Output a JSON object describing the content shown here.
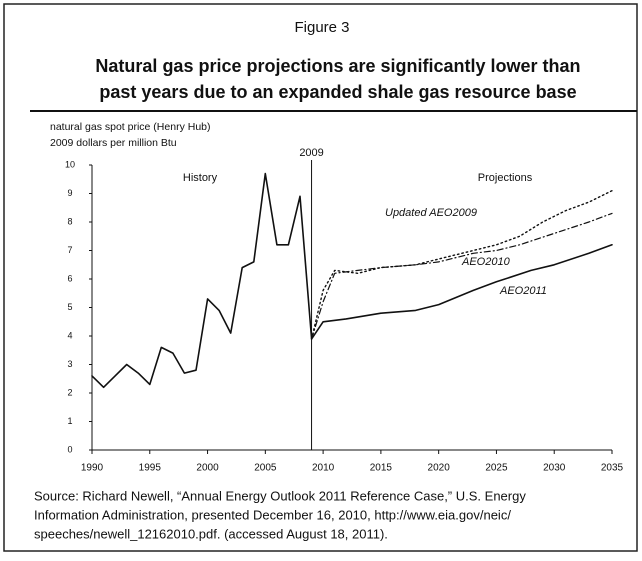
{
  "chart_data": {
    "type": "line",
    "figure_label": "Figure 3",
    "title": [
      "Natural gas price projections are significantly lower than",
      "past years due to an expanded shale gas resource base"
    ],
    "y_label": [
      "natural gas spot price (Henry Hub)",
      "2009 dollars per million Btu"
    ],
    "annotations": [
      "History",
      "Projections"
    ],
    "vline": 2009,
    "xlim": [
      1990,
      2035
    ],
    "xticks": [
      1990,
      1995,
      2000,
      2005,
      2010,
      2015,
      2020,
      2025,
      2030,
      2035
    ],
    "ylim": [
      0,
      10
    ],
    "yticks": [
      0,
      1,
      2,
      3,
      4,
      5,
      6,
      7,
      8,
      9,
      10
    ],
    "series": [
      {
        "name": "History",
        "color": "#111111",
        "style": "solid",
        "x": [
          1990,
          1991,
          1992,
          1993,
          1994,
          1995,
          1996,
          1997,
          1998,
          1999,
          2000,
          2001,
          2002,
          2003,
          2004,
          2005,
          2006,
          2007,
          2008,
          2009
        ],
        "values": [
          2.6,
          2.2,
          2.6,
          3.0,
          2.7,
          2.3,
          3.6,
          3.4,
          2.7,
          2.8,
          5.3,
          4.9,
          4.1,
          6.4,
          6.6,
          9.7,
          7.2,
          7.2,
          8.9,
          3.9
        ]
      },
      {
        "name": "Updated AEO2009",
        "color": "#111111",
        "style": "dotted",
        "x": [
          2009,
          2010,
          2011,
          2013,
          2015,
          2018,
          2020,
          2023,
          2025,
          2027,
          2029,
          2031,
          2033,
          2035
        ],
        "values": [
          3.9,
          5.6,
          6.3,
          6.2,
          6.4,
          6.5,
          6.7,
          7.0,
          7.2,
          7.5,
          8.0,
          8.4,
          8.7,
          9.1
        ]
      },
      {
        "name": "AEO2010",
        "color": "#111111",
        "style": "dashed",
        "x": [
          2009,
          2010,
          2011,
          2013,
          2015,
          2018,
          2020,
          2023,
          2025,
          2027,
          2030,
          2033,
          2035
        ],
        "values": [
          3.9,
          5.2,
          6.2,
          6.3,
          6.4,
          6.5,
          6.6,
          6.9,
          7.0,
          7.2,
          7.6,
          8.0,
          8.3
        ]
      },
      {
        "name": "AEO2011",
        "color": "#111111",
        "style": "solid",
        "x": [
          2009,
          2010,
          2012,
          2015,
          2018,
          2020,
          2023,
          2025,
          2028,
          2030,
          2033,
          2035
        ],
        "values": [
          3.9,
          4.5,
          4.6,
          4.8,
          4.9,
          5.1,
          5.6,
          5.9,
          6.3,
          6.5,
          6.9,
          7.2
        ]
      }
    ],
    "source": [
      "Source: Richard Newell, “Annual Energy Outlook 2011 Reference Case,” U.S. Energy",
      "Information Administration, presented December 16, 2010, http://www.eia.gov/neic/",
      "speeches/newell_12162010.pdf. (accessed August 18, 2011)."
    ]
  }
}
